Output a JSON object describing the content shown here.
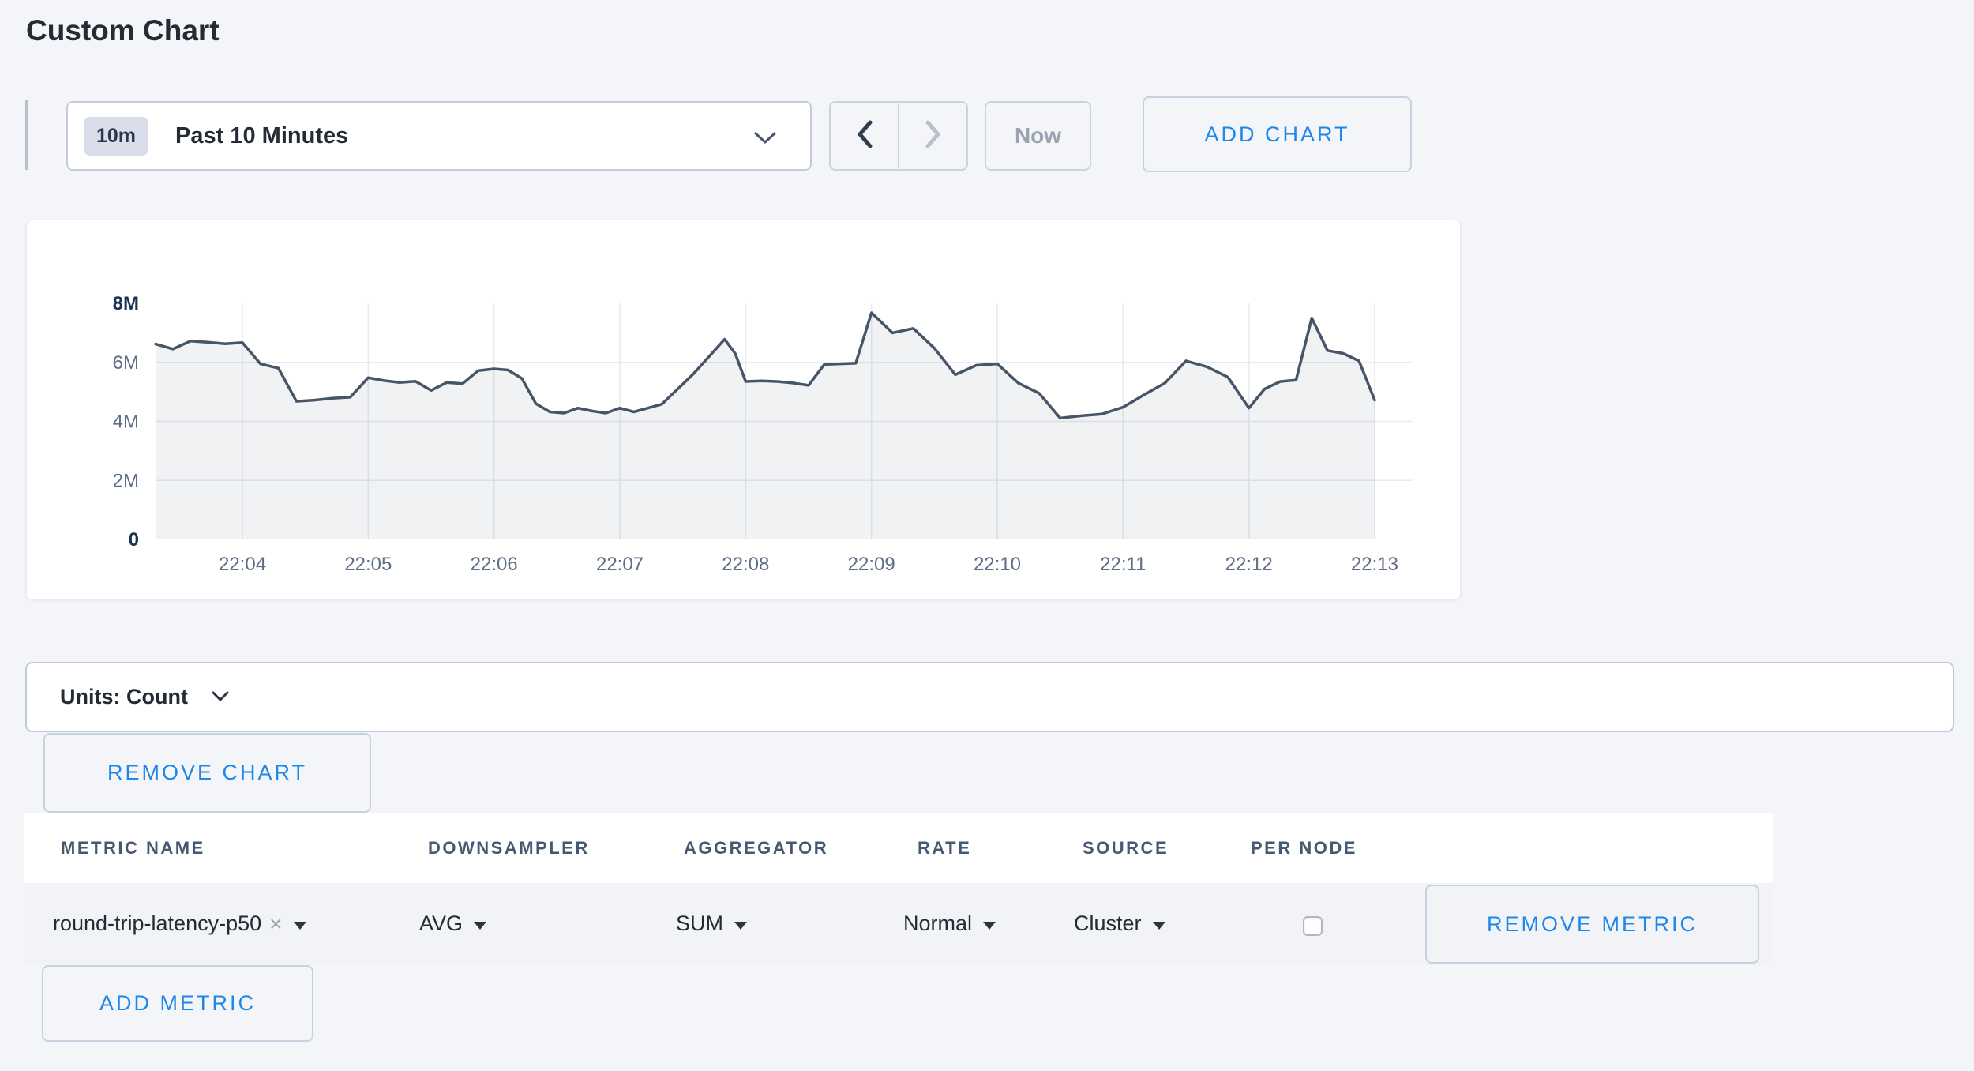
{
  "page": {
    "title": "Custom Chart"
  },
  "toolbar": {
    "time_range": {
      "badge": "10m",
      "label": "Past 10 Minutes"
    },
    "now_button": "Now",
    "add_chart_button": "ADD CHART"
  },
  "chart_card": {
    "units_label": "Units: Count",
    "remove_chart_button": "REMOVE CHART"
  },
  "metrics_table": {
    "headers": [
      "METRIC NAME",
      "DOWNSAMPLER",
      "AGGREGATOR",
      "RATE",
      "SOURCE",
      "PER NODE"
    ],
    "row": {
      "metric_name": "round-trip-latency-p50",
      "downsampler": "AVG",
      "aggregator": "SUM",
      "rate": "Normal",
      "source": "Cluster",
      "per_node_checked": false,
      "remove_metric_button": "REMOVE METRIC"
    },
    "add_metric_button": "ADD METRIC"
  },
  "icons": {
    "clear_metric": "×"
  },
  "colors": {
    "accent_blue": "#1e87e8",
    "line": "#475569",
    "area_fill": "rgba(73,86,107,0.08)",
    "grid": "#e7eaf0",
    "tick_strong": "#1c3252",
    "tick_muted": "#5d6e86",
    "header_text": "#475872",
    "page_background": "#f3f5f8"
  },
  "chart_data": {
    "type": "area",
    "title": "",
    "xlabel": "",
    "ylabel": "",
    "y_unit": "count (millions)",
    "ylim": [
      0,
      8
    ],
    "grid": true,
    "legend": "none",
    "x_range_minutes": [
      0.3095,
      10.3
    ],
    "x_ticks": [
      {
        "minute": 1,
        "label": "22:04"
      },
      {
        "minute": 2,
        "label": "22:05"
      },
      {
        "minute": 3,
        "label": "22:06"
      },
      {
        "minute": 4,
        "label": "22:07"
      },
      {
        "minute": 5,
        "label": "22:08"
      },
      {
        "minute": 6,
        "label": "22:09"
      },
      {
        "minute": 7,
        "label": "22:10"
      },
      {
        "minute": 8,
        "label": "22:11"
      },
      {
        "minute": 9,
        "label": "22:12"
      },
      {
        "minute": 10,
        "label": "22:13"
      }
    ],
    "y_ticks": [
      {
        "value": 0,
        "label": "0",
        "strong": true
      },
      {
        "value": 2,
        "label": "2M",
        "strong": false
      },
      {
        "value": 4,
        "label": "4M",
        "strong": false
      },
      {
        "value": 6,
        "label": "6M",
        "strong": false
      },
      {
        "value": 8,
        "label": "8M",
        "strong": true
      }
    ],
    "series": [
      {
        "name": "round-trip-latency-p50",
        "points": [
          [
            0.31,
            6.62
          ],
          [
            0.448,
            6.45
          ],
          [
            0.586,
            6.72
          ],
          [
            0.724,
            6.68
          ],
          [
            0.862,
            6.63
          ],
          [
            1.0,
            6.67
          ],
          [
            1.143,
            5.95
          ],
          [
            1.286,
            5.8
          ],
          [
            1.429,
            4.68
          ],
          [
            1.571,
            4.72
          ],
          [
            1.714,
            4.78
          ],
          [
            1.857,
            4.82
          ],
          [
            2.0,
            5.48
          ],
          [
            2.125,
            5.38
          ],
          [
            2.25,
            5.32
          ],
          [
            2.375,
            5.36
          ],
          [
            2.5,
            5.05
          ],
          [
            2.625,
            5.32
          ],
          [
            2.75,
            5.28
          ],
          [
            2.875,
            5.72
          ],
          [
            3.0,
            5.78
          ],
          [
            3.111,
            5.74
          ],
          [
            3.222,
            5.45
          ],
          [
            3.333,
            4.6
          ],
          [
            3.444,
            4.32
          ],
          [
            3.556,
            4.28
          ],
          [
            3.667,
            4.45
          ],
          [
            3.778,
            4.35
          ],
          [
            3.889,
            4.28
          ],
          [
            4.0,
            4.45
          ],
          [
            4.111,
            4.32
          ],
          [
            4.222,
            4.45
          ],
          [
            4.333,
            4.58
          ],
          [
            4.583,
            5.6
          ],
          [
            4.833,
            6.78
          ],
          [
            4.917,
            6.3
          ],
          [
            5.0,
            5.35
          ],
          [
            5.125,
            5.37
          ],
          [
            5.25,
            5.35
          ],
          [
            5.375,
            5.3
          ],
          [
            5.5,
            5.22
          ],
          [
            5.625,
            5.93
          ],
          [
            5.75,
            5.95
          ],
          [
            5.875,
            5.97
          ],
          [
            6.0,
            7.68
          ],
          [
            6.167,
            7.0
          ],
          [
            6.333,
            7.15
          ],
          [
            6.5,
            6.48
          ],
          [
            6.667,
            5.58
          ],
          [
            6.833,
            5.9
          ],
          [
            7.0,
            5.95
          ],
          [
            7.167,
            5.3
          ],
          [
            7.333,
            4.95
          ],
          [
            7.5,
            4.11
          ],
          [
            7.667,
            4.19
          ],
          [
            7.833,
            4.25
          ],
          [
            8.0,
            4.48
          ],
          [
            8.167,
            4.9
          ],
          [
            8.333,
            5.3
          ],
          [
            8.5,
            6.05
          ],
          [
            8.667,
            5.85
          ],
          [
            8.833,
            5.5
          ],
          [
            9.0,
            4.45
          ],
          [
            9.125,
            5.1
          ],
          [
            9.25,
            5.35
          ],
          [
            9.375,
            5.4
          ],
          [
            9.5,
            7.5
          ],
          [
            9.625,
            6.4
          ],
          [
            9.75,
            6.3
          ],
          [
            9.875,
            6.05
          ],
          [
            10.0,
            4.72
          ]
        ]
      }
    ]
  }
}
